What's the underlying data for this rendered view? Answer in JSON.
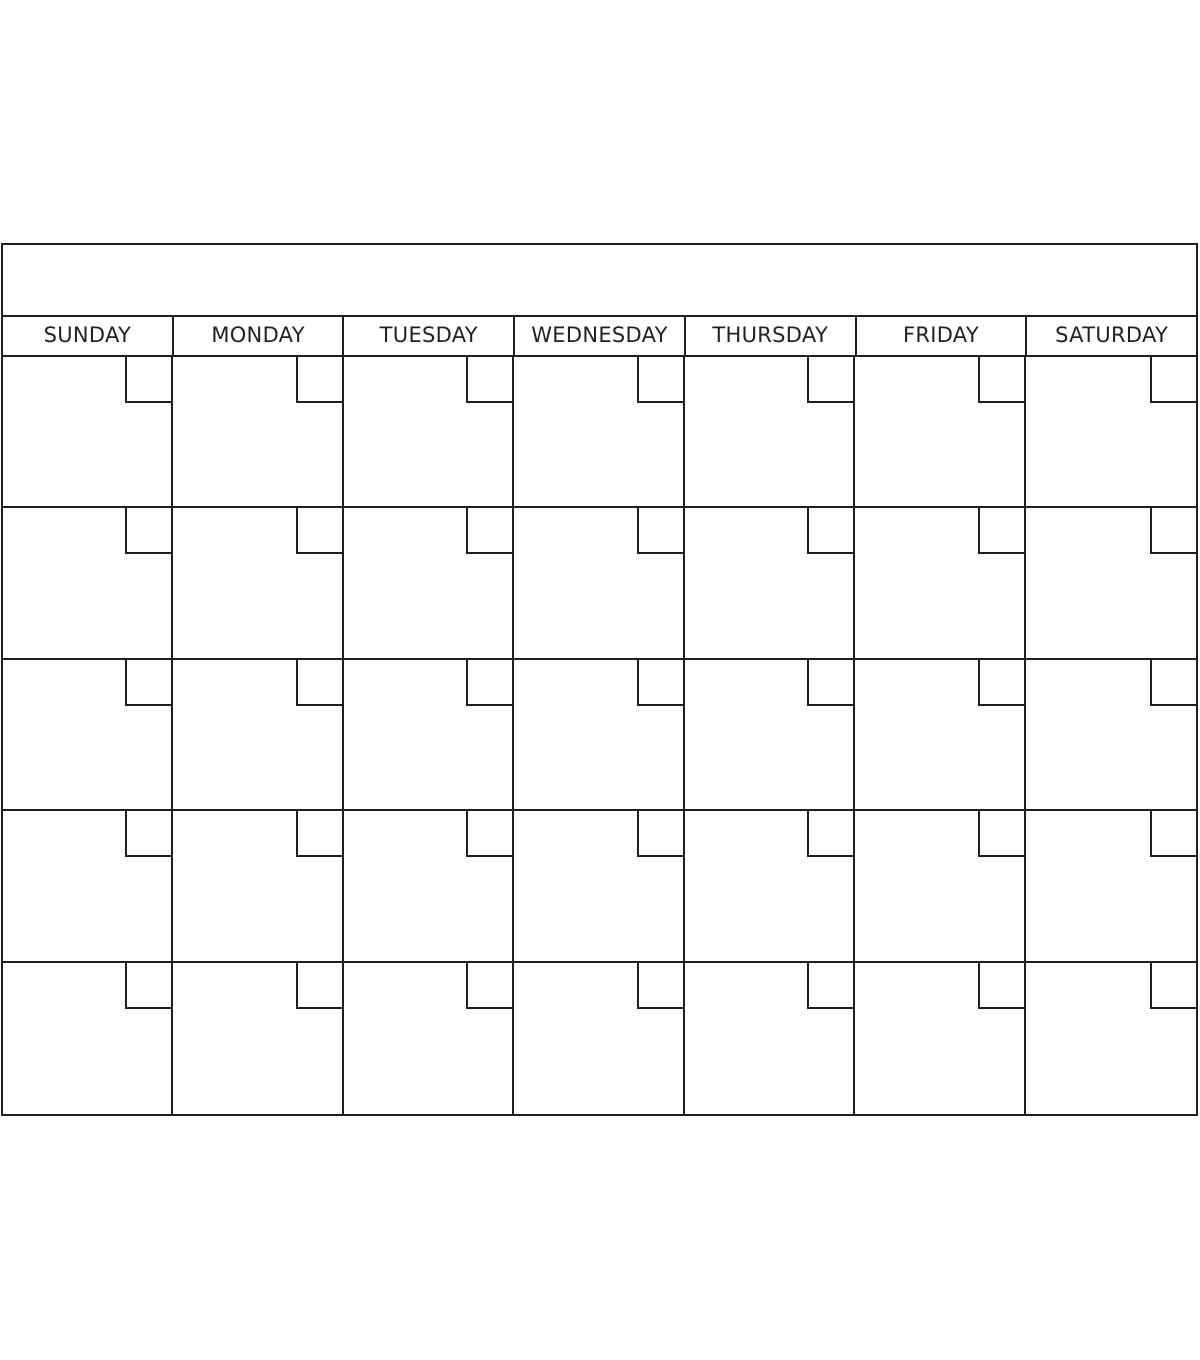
{
  "calendar": {
    "month_title": "",
    "weekdays": [
      "SUNDAY",
      "MONDAY",
      "TUESDAY",
      "WEDNESDAY",
      "THURSDAY",
      "FRIDAY",
      "SATURDAY"
    ],
    "weeks": 5,
    "line_color": "#1e1e1e"
  }
}
